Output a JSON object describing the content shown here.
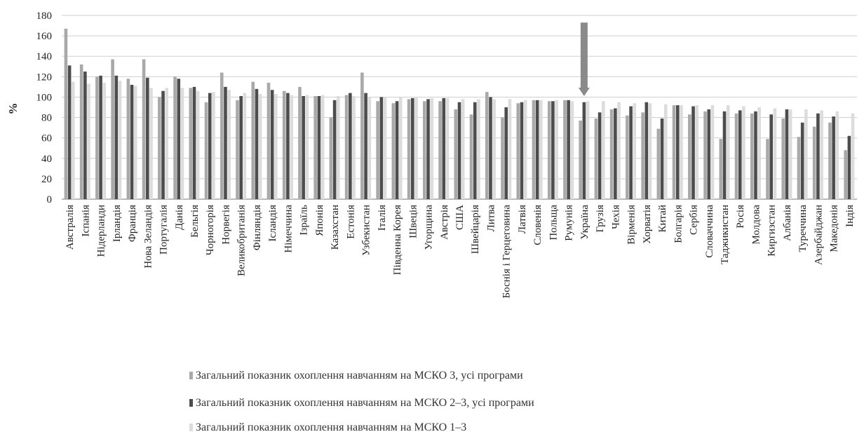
{
  "chart_data": {
    "type": "bar",
    "ylabel": "%",
    "ylim": [
      0,
      180
    ],
    "yticks": [
      0,
      20,
      40,
      60,
      80,
      100,
      120,
      140,
      160,
      180
    ],
    "grid": true,
    "legend_position": "bottom",
    "categories": [
      "Австралія",
      "Іспанія",
      "Нідерланди",
      "Ірландія",
      "Франція",
      "Нова Зеландія",
      "Португалія",
      "Данія",
      "Бельгія",
      "Чорногорія",
      "Норвегія",
      "Великобританія",
      "Фінляндія",
      "Ісландія",
      "Німеччина",
      "Ізраїль",
      "Японія",
      "Казахстан",
      "Естонія",
      "Узбекистан",
      "Італія",
      "Південна Корея",
      "Швеція",
      "Угорщина",
      "Австрія",
      "США",
      "Швейцарія",
      "Литва",
      "Боснія і Герцеговина",
      "Латвія",
      "Словенія",
      "Польща",
      "Румунія",
      "Україна",
      "Грузія",
      "Чехія",
      "Вірменія",
      "Хорватія",
      "Китай",
      "Болгарія",
      "Сербія",
      "Словаччина",
      "Таджикистан",
      "Росія",
      "Молдова",
      "Киргизстан",
      "Албанія",
      "Туреччина",
      "Азербайджан",
      "Македонія",
      "Індія"
    ],
    "series": [
      {
        "name": "Загальний показник охоплення навчанням на МСКО 3, усі програми",
        "color": "#a9a9a9",
        "values": [
          167,
          132,
          120,
          137,
          118,
          137,
          100,
          120,
          109,
          95,
          124,
          97,
          115,
          114,
          106,
          110,
          101,
          80,
          102,
          124,
          96,
          94,
          98,
          96,
          96,
          88,
          83,
          105,
          80,
          94,
          97,
          96,
          97,
          77,
          79,
          88,
          82,
          85,
          69,
          92,
          83,
          86,
          59,
          84,
          84,
          59,
          79,
          61,
          71,
          75,
          48
        ]
      },
      {
        "name": "Загальний показник охоплення навчанням на МСКО 2–3, усі програми",
        "color": "#4d4d4d",
        "values": [
          131,
          125,
          121,
          121,
          112,
          119,
          106,
          118,
          110,
          104,
          110,
          101,
          108,
          107,
          104,
          101,
          101,
          97,
          104,
          104,
          100,
          96,
          99,
          98,
          99,
          95,
          95,
          100,
          90,
          95,
          97,
          96,
          97,
          95,
          85,
          89,
          91,
          95,
          79,
          92,
          91,
          88,
          86,
          87,
          86,
          83,
          88,
          75,
          84,
          81,
          62
        ]
      },
      {
        "name": "Загальний показник охоплення навчанням на МСКО 1–3",
        "color": "#dcdcdc",
        "values": [
          115,
          113,
          114,
          116,
          111,
          109,
          109,
          109,
          106,
          105,
          107,
          104,
          103,
          103,
          102,
          102,
          102,
          101,
          101,
          100,
          100,
          100,
          100,
          99,
          99,
          98,
          98,
          98,
          98,
          97,
          97,
          97,
          96,
          96,
          96,
          95,
          94,
          94,
          93,
          92,
          92,
          92,
          92,
          91,
          90,
          89,
          88,
          88,
          87,
          86,
          84
        ]
      }
    ],
    "annotations": [
      {
        "type": "arrow",
        "target_category": "Україна",
        "color": "#8a8a8a"
      }
    ]
  },
  "legend": {
    "items": [
      {
        "label": "Загальний показник охоплення навчанням на МСКО 3, усі програми",
        "color": "#a9a9a9"
      },
      {
        "label": "Загальний показник охоплення навчанням на МСКО 2–3, усі програми",
        "color": "#4d4d4d"
      },
      {
        "label": "Загальний показник охоплення навчанням на МСКО 1–3",
        "color": "#dcdcdc"
      }
    ]
  }
}
